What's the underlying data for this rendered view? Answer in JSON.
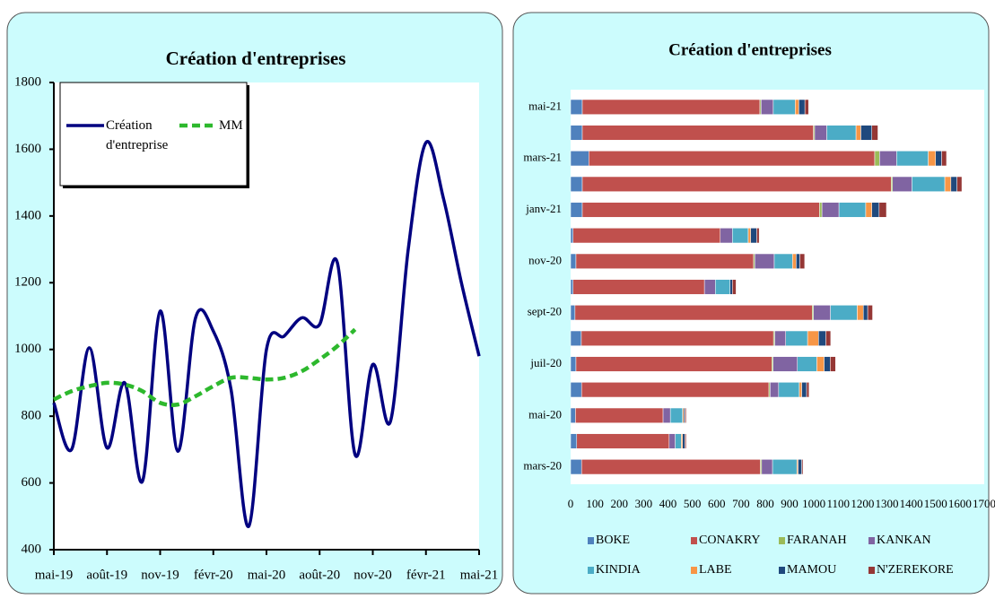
{
  "chart_data": [
    {
      "type": "line",
      "title": "Création d'entreprises",
      "categories": [
        "mai-19",
        null,
        null,
        "août-19",
        null,
        null,
        "nov-19",
        null,
        null,
        "févr-20",
        null,
        null,
        "mai-20",
        null,
        null,
        "août-20",
        null,
        null,
        "nov-20",
        null,
        null,
        "févr-21",
        null,
        null,
        "mai-21"
      ],
      "series": [
        {
          "name": "Création d'entreprise",
          "color": "#000080",
          "line_style": "solid",
          "values": [
            840,
            700,
            1005,
            705,
            900,
            605,
            1115,
            695,
            1095,
            1055,
            880,
            470,
            1000,
            1040,
            1095,
            1075,
            1260,
            685,
            955,
            785,
            1300,
            1620,
            1450,
            1200,
            980
          ]
        },
        {
          "name": "MM",
          "color": "#2db82d",
          "line_style": "dashed",
          "values": [
            850,
            875,
            890,
            900,
            895,
            875,
            840,
            835,
            860,
            890,
            915,
            915,
            910,
            915,
            935,
            970,
            1010,
            1060,
            null,
            null,
            null,
            null,
            null,
            null,
            null
          ]
        }
      ],
      "ylim": [
        400,
        1800
      ],
      "yticks": [
        400,
        600,
        800,
        1000,
        1200,
        1400,
        1600,
        1800
      ],
      "legend": "upper left"
    },
    {
      "type": "bar",
      "orientation": "horizontal",
      "stacked": true,
      "title": "Création d'entreprises",
      "categories": [
        "mars-20",
        null,
        "mai-20",
        null,
        "juil-20",
        null,
        "sept-20",
        null,
        "nov-20",
        null,
        "janv-21",
        null,
        "mars-21",
        null,
        "mai-21"
      ],
      "series": [
        {
          "name": "BOKE",
          "color": "#4f81bd",
          "values": [
            45,
            25,
            20,
            45,
            22,
            44,
            18,
            10,
            22,
            10,
            48,
            48,
            75,
            48,
            48
          ]
        },
        {
          "name": "CONAKRY",
          "color": "#c0504d",
          "values": [
            735,
            380,
            360,
            770,
            805,
            790,
            975,
            540,
            730,
            605,
            975,
            1270,
            1175,
            950,
            730
          ]
        },
        {
          "name": "FARANAH",
          "color": "#9bbb59",
          "values": [
            5,
            0,
            0,
            5,
            5,
            5,
            5,
            0,
            5,
            0,
            10,
            5,
            20,
            5,
            5
          ]
        },
        {
          "name": "KANKAN",
          "color": "#8064a2",
          "values": [
            45,
            25,
            30,
            35,
            100,
            45,
            70,
            45,
            80,
            50,
            70,
            80,
            70,
            50,
            50
          ]
        },
        {
          "name": "KINDIA",
          "color": "#4bacc6",
          "values": [
            100,
            25,
            50,
            85,
            80,
            90,
            110,
            60,
            75,
            65,
            110,
            135,
            130,
            120,
            90
          ]
        },
        {
          "name": "LABE",
          "color": "#f79646",
          "values": [
            5,
            5,
            5,
            10,
            30,
            45,
            25,
            0,
            15,
            10,
            25,
            25,
            30,
            20,
            15
          ]
        },
        {
          "name": "MAMOU",
          "color": "#1f497d",
          "values": [
            15,
            10,
            5,
            20,
            25,
            30,
            18,
            10,
            15,
            25,
            30,
            25,
            25,
            45,
            25
          ]
        },
        {
          "name": "N'ZEREKORE",
          "color": "#953735",
          "values": [
            5,
            5,
            5,
            10,
            22,
            20,
            20,
            15,
            20,
            10,
            30,
            20,
            20,
            25,
            15
          ]
        }
      ],
      "xlim": [
        0,
        1700
      ],
      "xticks": [
        0,
        100,
        200,
        300,
        400,
        500,
        600,
        700,
        800,
        900,
        1000,
        1100,
        1200,
        1300,
        1400,
        1500,
        1600,
        1700
      ],
      "legend": "bottom"
    }
  ]
}
